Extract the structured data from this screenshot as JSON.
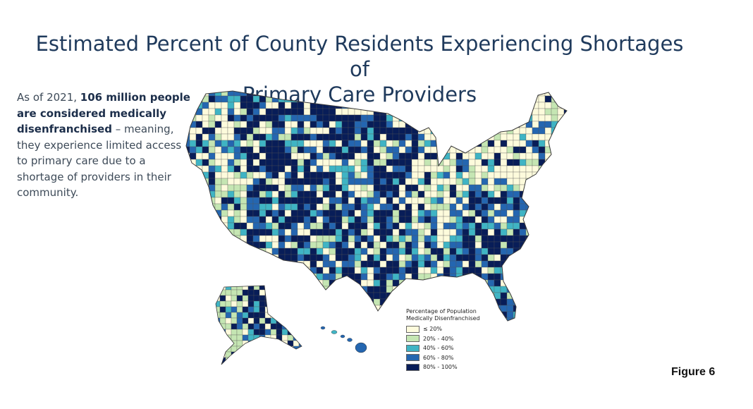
{
  "title": {
    "line1": "Estimated Percent of County Residents Experiencing Shortages of",
    "line2": "Primary Care Providers"
  },
  "caption": {
    "part1": "As of 2021, ",
    "bold": "106 million people are considered medically disenfranchised",
    "part2": " – meaning, they experience limited access to primary care due to a shortage of providers in their community."
  },
  "legend": {
    "title_line1": "Percentage of Population",
    "title_line2": "Medically Disenfranchised",
    "items": [
      {
        "label": "≤ 20%",
        "color": "#fdfbdc"
      },
      {
        "label": "20% - 40%",
        "color": "#c5e6b3"
      },
      {
        "label": "40% - 60%",
        "color": "#3fb4c4"
      },
      {
        "label": "60% - 80%",
        "color": "#2466b0"
      },
      {
        "label": "80% - 100%",
        "color": "#081d58"
      }
    ]
  },
  "figure_label": "Figure 6",
  "colors": {
    "title": "#1f3a5c",
    "border": "#3a3a3a",
    "c1": "#fdfbdc",
    "c2": "#c5e6b3",
    "c3": "#3fb4c4",
    "c4": "#2466b0",
    "c5": "#081d58"
  }
}
